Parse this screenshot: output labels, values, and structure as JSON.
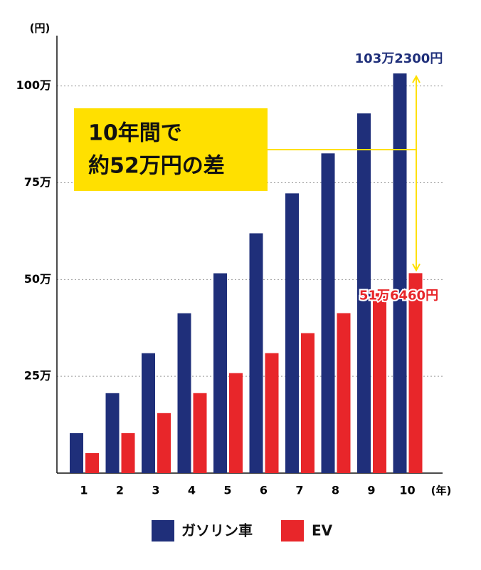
{
  "chart_data": {
    "type": "bar",
    "y_label": "(円)",
    "x_label": "(年)",
    "categories": [
      "1",
      "2",
      "3",
      "4",
      "5",
      "6",
      "7",
      "8",
      "9",
      "10"
    ],
    "series": [
      {
        "name": "ガソリン車",
        "color": "#1f2f7a",
        "values": [
          103230,
          206460,
          309690,
          412920,
          516150,
          619380,
          722610,
          825840,
          929070,
          1032300
        ],
        "value_labels": [
          null,
          null,
          null,
          null,
          null,
          null,
          null,
          null,
          null,
          "103万2300円"
        ]
      },
      {
        "name": "EV",
        "color": "#e8262a",
        "values": [
          51646,
          103292,
          154938,
          206584,
          258230,
          309876,
          361522,
          413168,
          464814,
          516460
        ],
        "value_labels": [
          null,
          null,
          null,
          null,
          null,
          null,
          null,
          null,
          null,
          "51万6460円"
        ]
      }
    ],
    "annotation": [
      "10年間で",
      "約52万円の差"
    ],
    "annotation_color": "#ffe000",
    "ylim": [
      0,
      1130000
    ],
    "yticks": [
      {
        "value": 250000,
        "label": "25万"
      },
      {
        "value": 500000,
        "label": "50万"
      },
      {
        "value": 750000,
        "label": "75万"
      },
      {
        "value": 1000000,
        "label": "100万"
      }
    ],
    "grid": true
  }
}
